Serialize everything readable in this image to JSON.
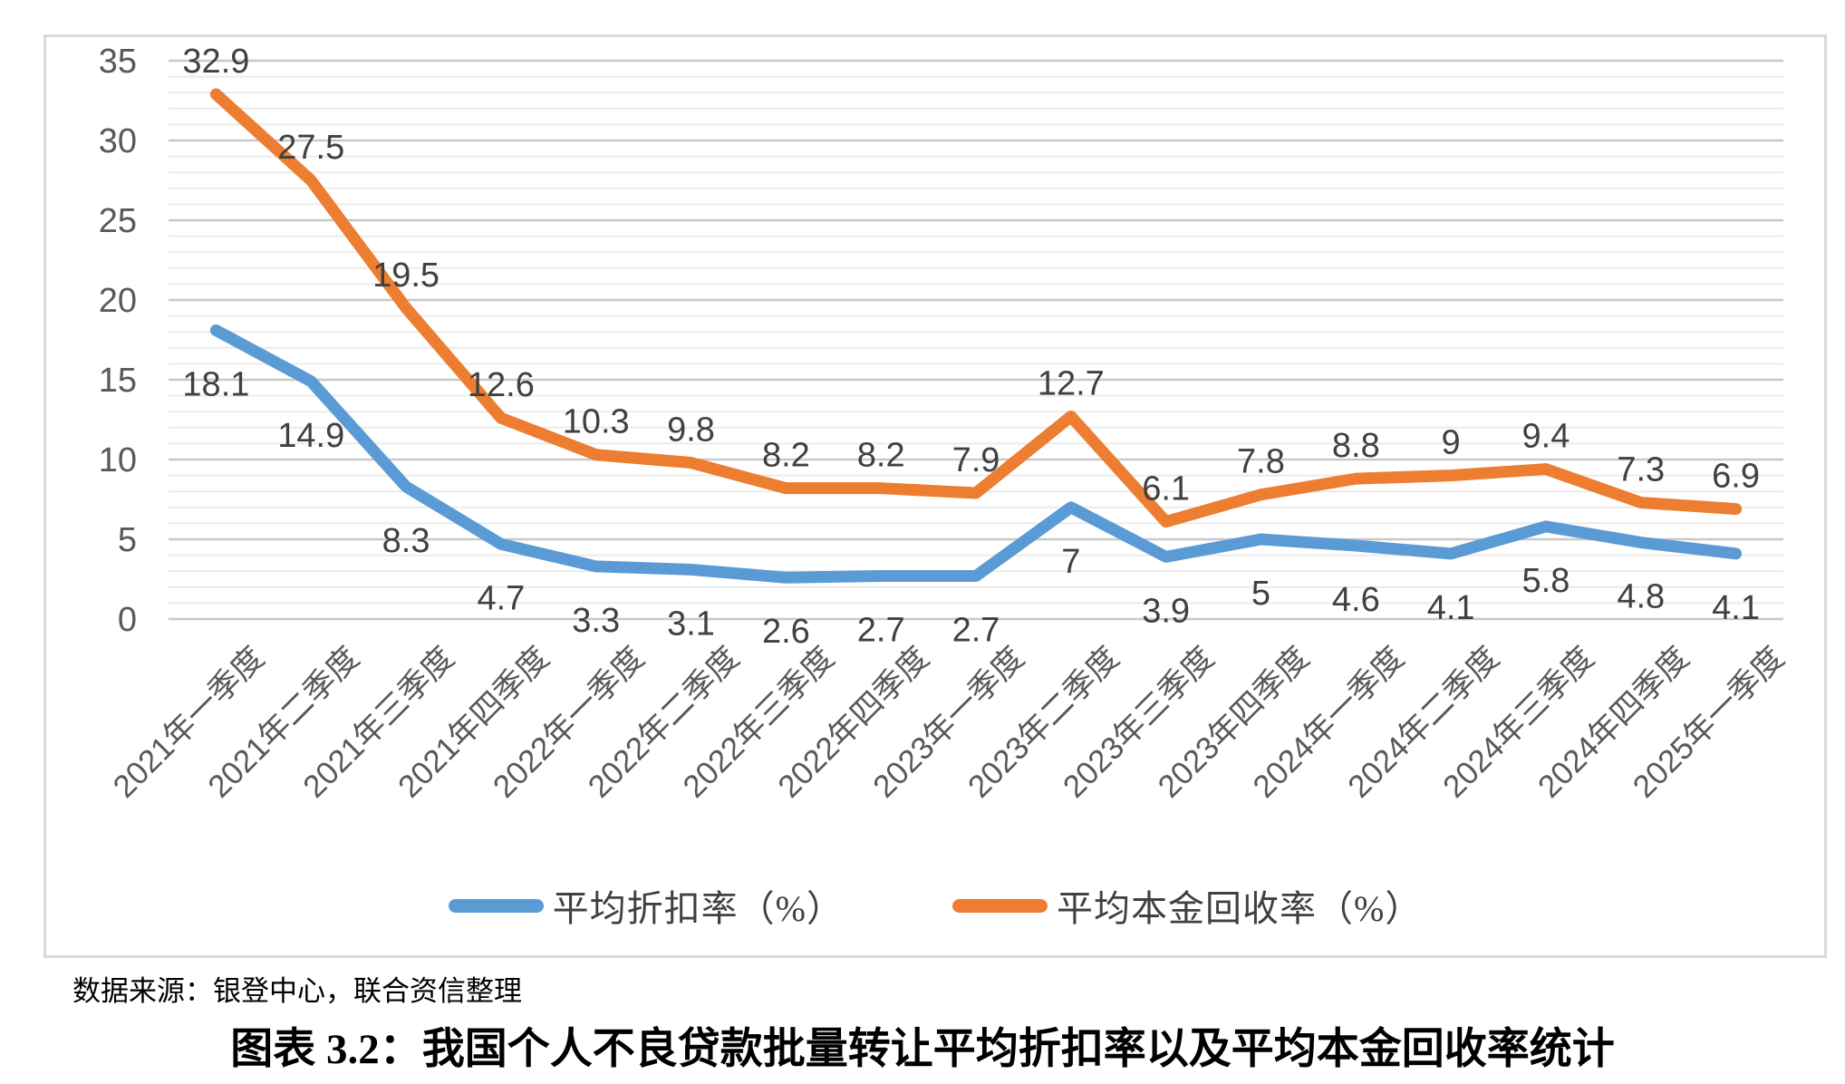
{
  "chart_data": {
    "type": "line",
    "title": "",
    "categories": [
      "2021年一季度",
      "2021年二季度",
      "2021年三季度",
      "2021年四季度",
      "2022年一季度",
      "2022年二季度",
      "2022年三季度",
      "2022年四季度",
      "2023年一季度",
      "2023年二季度",
      "2023年三季度",
      "2023年四季度",
      "2024年一季度",
      "2024年二季度",
      "2024年三季度",
      "2024年四季度",
      "2025年一季度"
    ],
    "series": [
      {
        "id": "discount-rate",
        "name": "平均折扣率（%）",
        "color": "#5B9BD5",
        "label_position": "below",
        "values": [
          18.1,
          14.9,
          8.3,
          4.7,
          3.3,
          3.1,
          2.6,
          2.7,
          2.7,
          7,
          3.9,
          5,
          4.6,
          4.1,
          5.8,
          4.8,
          4.1
        ]
      },
      {
        "id": "principal-recovery-rate",
        "name": "平均本金回收率（%）",
        "color": "#ED7D31",
        "label_position": "above",
        "values": [
          32.9,
          27.5,
          19.5,
          12.6,
          10.3,
          9.8,
          8.2,
          8.2,
          7.9,
          12.7,
          6.1,
          7.8,
          8.8,
          9,
          9.4,
          7.3,
          6.9
        ]
      }
    ],
    "y_axis": {
      "min": 0,
      "max": 35,
      "major_step": 5,
      "minor_step": 1,
      "tick_labels": [
        "0",
        "5",
        "10",
        "15",
        "20",
        "25",
        "30",
        "35"
      ]
    },
    "x_axis": {
      "label_rotation_deg": -45
    },
    "grid": {
      "major": true,
      "minor": true
    },
    "legend_position": "bottom",
    "data_labels_shown": true
  },
  "colors": {
    "series_discount": "#5B9BD5",
    "series_recovery": "#ED7D31",
    "data_label": "#404040",
    "axis_label": "#595959",
    "gridline_major": "#c9c9c9",
    "gridline_minor": "#ebebeb",
    "frame_border": "#d9d9d9"
  },
  "source_note": "数据来源：银登中心，联合资信整理",
  "caption": "图表 3.2：我国个人不良贷款批量转让平均折扣率以及平均本金回收率统计"
}
